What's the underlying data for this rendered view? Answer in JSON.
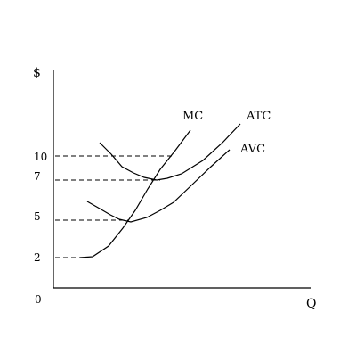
{
  "diagram": {
    "y_axis_label": "$",
    "x_axis_label": "Q",
    "origin_label": "0",
    "y_ticks": [
      {
        "label": "10",
        "value": 10
      },
      {
        "label": "7",
        "value": 7
      },
      {
        "label": "5",
        "value": 5
      },
      {
        "label": "2",
        "value": 2
      }
    ],
    "curves": [
      {
        "name": "MC",
        "label": "MC"
      },
      {
        "name": "ATC",
        "label": "ATC"
      },
      {
        "name": "AVC",
        "label": "AVC"
      }
    ],
    "line_color": "#000000"
  }
}
